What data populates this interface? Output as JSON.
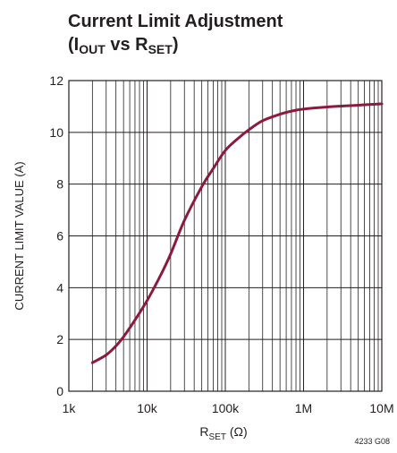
{
  "title": {
    "line1": "Current Limit Adjustment",
    "line2_prefix": "(I",
    "line2_sub1": "OUT",
    "line2_mid": " vs R",
    "line2_sub2": "SET",
    "line2_suffix": ")"
  },
  "figure_id": "4233 G08",
  "colors": {
    "curve": "#8b1a3c",
    "grid": "#231f20",
    "text": "#231f20"
  },
  "chart_data": {
    "type": "line",
    "title": "Current Limit Adjustment (IOUT vs RSET)",
    "xlabel_main": "R",
    "xlabel_sub": "SET",
    "xlabel_unit": " (Ω)",
    "ylabel": "CURRENT LIMIT VALUE (A)",
    "x_scale": "log",
    "xlim": [
      1000,
      10000000
    ],
    "ylim": [
      0,
      12
    ],
    "x_ticks": [
      1000,
      10000,
      100000,
      1000000,
      10000000
    ],
    "x_tick_labels": [
      "1k",
      "10k",
      "100k",
      "1M",
      "10M"
    ],
    "y_ticks": [
      0,
      2,
      4,
      6,
      8,
      10,
      12
    ],
    "y_tick_labels": [
      "0",
      "2",
      "4",
      "6",
      "8",
      "10",
      "12"
    ],
    "grid": true,
    "series": [
      {
        "x": [
          2000,
          3000,
          4000,
          5000,
          7000,
          10000,
          15000,
          20000,
          30000,
          50000,
          70000,
          100000,
          150000,
          200000,
          300000,
          500000,
          700000,
          1000000,
          2000000,
          5000000,
          10000000
        ],
        "y": [
          1.1,
          1.4,
          1.75,
          2.1,
          2.75,
          3.5,
          4.5,
          5.3,
          6.6,
          7.9,
          8.6,
          9.3,
          9.8,
          10.1,
          10.45,
          10.7,
          10.82,
          10.9,
          10.98,
          11.05,
          11.1
        ]
      }
    ]
  }
}
